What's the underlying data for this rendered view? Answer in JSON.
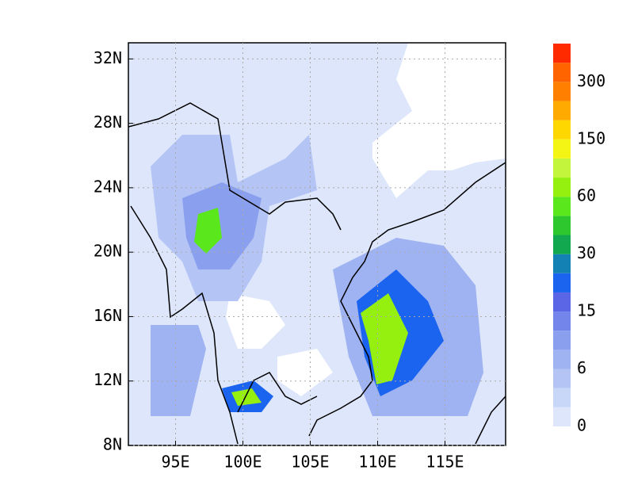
{
  "map": {
    "xlim": [
      91.5,
      119.5
    ],
    "ylim": [
      8,
      33
    ],
    "xticks": [
      {
        "value": 95,
        "label": "95E"
      },
      {
        "value": 100,
        "label": "100E"
      },
      {
        "value": 105,
        "label": "105E"
      },
      {
        "value": 110,
        "label": "110E"
      },
      {
        "value": 115,
        "label": "115E"
      }
    ],
    "yticks": [
      {
        "value": 8,
        "label": "8N"
      },
      {
        "value": 12,
        "label": "12N"
      },
      {
        "value": 16,
        "label": "16N"
      },
      {
        "value": 20,
        "label": "20N"
      },
      {
        "value": 24,
        "label": "24N"
      },
      {
        "value": 28,
        "label": "28N"
      },
      {
        "value": 32,
        "label": "32N"
      }
    ],
    "grid": true,
    "colorbar": {
      "colors": [
        "#dde6fa",
        "#c8d6f8",
        "#b4c5f5",
        "#9fb3f2",
        "#8aa0ee",
        "#7384ea",
        "#5a66e6",
        "#1a64f0",
        "#1481b4",
        "#11a84f",
        "#2ec82e",
        "#5ae81c",
        "#96f00f",
        "#c3f53c",
        "#f5f515",
        "#ffd700",
        "#ffaa00",
        "#ff7f00",
        "#ff6400",
        "#ff2a00"
      ],
      "labels": [
        0,
        6,
        15,
        30,
        60,
        150,
        300
      ]
    }
  }
}
